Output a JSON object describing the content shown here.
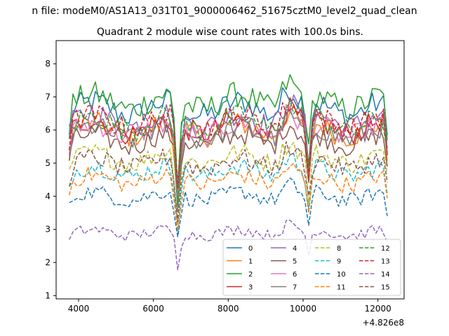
{
  "chart_data": {
    "type": "line",
    "suptitle": "n file: modeM0/AS1A13_031T01_9000006462_51675cztM0_level2_quad_clean",
    "title": "Quadrant 2 module wise count rates with 100.0s bins.",
    "xlabel": "",
    "ylabel": "",
    "x_offset_label": "+4.826e8",
    "xlim": [
      3400,
      12700
    ],
    "ylim": [
      0.9,
      8.7
    ],
    "xticks": [
      4000,
      6000,
      8000,
      10000,
      12000
    ],
    "yticks": [
      1,
      2,
      3,
      4,
      5,
      6,
      7,
      8
    ],
    "grid": false,
    "legend_position": "lower-right",
    "legend_columns": 4,
    "x_range": [
      3750,
      12250
    ],
    "x_step": 100,
    "gaps": [
      [
        6700,
        6800
      ],
      [
        10200,
        10300
      ]
    ],
    "series": [
      {
        "name": "0",
        "color": "#1f77b4",
        "style": "solid",
        "mean": 6.65
      },
      {
        "name": "1",
        "color": "#ff7f0e",
        "style": "solid",
        "mean": 6.0
      },
      {
        "name": "2",
        "color": "#2ca02c",
        "style": "solid",
        "mean": 6.85
      },
      {
        "name": "3",
        "color": "#d62728",
        "style": "solid",
        "mean": 6.1
      },
      {
        "name": "4",
        "color": "#9467bd",
        "style": "solid",
        "mean": 6.3
      },
      {
        "name": "5",
        "color": "#8c564b",
        "style": "solid",
        "mean": 5.7
      },
      {
        "name": "6",
        "color": "#e377c2",
        "style": "solid",
        "mean": 6.0
      },
      {
        "name": "7",
        "color": "#7f7f7f",
        "style": "solid",
        "mean": 5.9
      },
      {
        "name": "8",
        "color": "#bcbd22",
        "style": "dashed",
        "mean": 5.15
      },
      {
        "name": "9",
        "color": "#17becf",
        "style": "dashed",
        "mean": 4.75
      },
      {
        "name": "10",
        "color": "#1f77b4",
        "style": "dashed",
        "mean": 4.0
      },
      {
        "name": "11",
        "color": "#ff7f0e",
        "style": "dashed",
        "mean": 4.5
      },
      {
        "name": "12",
        "color": "#2ca02c",
        "style": "dashed",
        "mean": 6.2
      },
      {
        "name": "13",
        "color": "#d62728",
        "style": "dashed",
        "mean": 6.25
      },
      {
        "name": "14",
        "color": "#9467bd",
        "style": "dashed",
        "mean": 2.9
      },
      {
        "name": "15",
        "color": "#8c564b",
        "style": "dashed",
        "mean": 5.0
      }
    ]
  }
}
